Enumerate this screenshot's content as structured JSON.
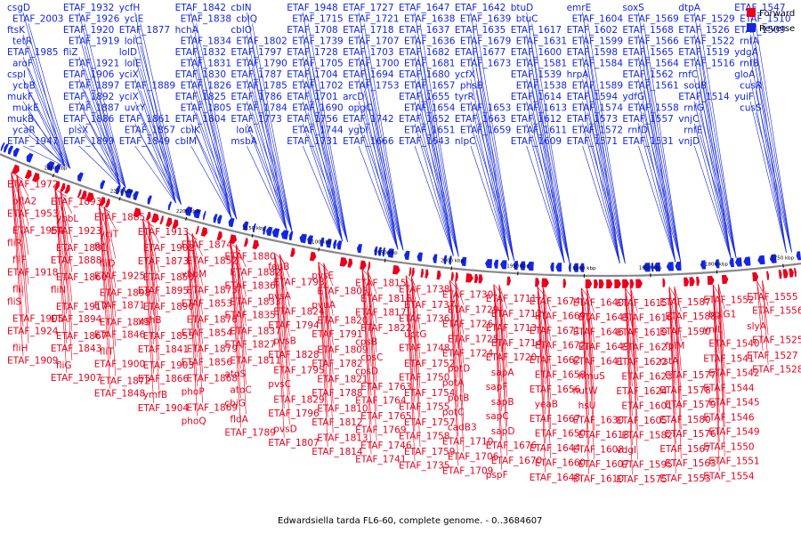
{
  "caption": "Edwardsiella tarda FL6-60, complete genome. - 0..3684607",
  "legend": {
    "forward": {
      "label": "Forward",
      "color": "#e8001c"
    },
    "reverse": {
      "label": "Reverse",
      "color": "#1426e0"
    }
  },
  "colors": {
    "forward": "#e8001c",
    "reverse": "#1426e0",
    "backbone": "#555555",
    "tick": "#000000"
  },
  "scale": {
    "ticks": [
      {
        "kbp": 2300,
        "label": "2300 kbp"
      },
      {
        "kbp": 2250,
        "label": "2250 kbp"
      },
      {
        "kbp": 2200,
        "label": "2200 kbp"
      },
      {
        "kbp": 2150,
        "label": "2150 kbp"
      },
      {
        "kbp": 2100,
        "label": "2100 kbp"
      },
      {
        "kbp": 2050,
        "label": "2050 kbp"
      },
      {
        "kbp": 2000,
        "label": "2000 kbp"
      },
      {
        "kbp": 1950,
        "label": "1950 kbp"
      },
      {
        "kbp": 1900,
        "label": "1900 kbp"
      },
      {
        "kbp": 1850,
        "label": "1850 kbp"
      },
      {
        "kbp": 1800,
        "label": "1800 kbp"
      },
      {
        "kbp": 1750,
        "label": "1750 kbp"
      }
    ]
  },
  "reverse_labels": [
    "csgD",
    "ETAF_2003",
    "ftsK",
    "tetR",
    "ETAF_1985",
    "aroF",
    "cspI",
    "ycbB",
    "mukF",
    "mukE",
    "mukB",
    "ycaR",
    "ETAF_1947",
    "ETAF_1932",
    "ETAF_1926",
    "ETAF_1920",
    "ETAF_1919",
    "fliZ",
    "ETAF_1921",
    "ETAF_1906",
    "ETAF_1897",
    "ETAF_1892",
    "ETAF_1887",
    "ETAF_1886",
    "plsX",
    "ETAF_1899",
    "ycfH",
    "yciE",
    "ETAF_1877",
    "lolC",
    "lolD",
    "lolE",
    "yciX",
    "ETAF_1889",
    "yciX",
    "uvrY",
    "ETAF_1861",
    "ETAF_1857",
    "ETAF_1849",
    "ETAF_1842",
    "ETAF_1838",
    "hchA",
    "ETAF_1834",
    "ETAF_1832",
    "ETAF_1831",
    "ETAF_1830",
    "ETAF_1826",
    "ETAF_1825",
    "ETAF_1805",
    "ETAF_1804",
    "cblK",
    "cblM",
    "cblN",
    "cblQ",
    "cblO",
    "ETAF_1802",
    "ETAF_1797",
    "ETAF_1790",
    "ETAF_1787",
    "ETAF_1785",
    "ETAF_1786",
    "ETAF_1784",
    "ETAF_1773",
    "lolA",
    "msbA",
    "ETAF_1948",
    "ETAF_1715",
    "ETAF_1708",
    "ETAF_1739",
    "ETAF_1728",
    "ETAF_1705",
    "ETAF_1704",
    "ETAF_1702",
    "ETAF_1701",
    "ETAF_1690",
    "ETAF_1756",
    "ETAF_1744",
    "ETAF_1731",
    "ETAF_1727",
    "ETAF_1721",
    "ETAF_1718",
    "ETAF_1707",
    "ETAF_1703",
    "ETAF_1700",
    "ETAF_1694",
    "ETAF_1753",
    "arcD",
    "opgC",
    "ETAF_1742",
    "ygbI",
    "ETAF_1666",
    "ETAF_1647",
    "ETAF_1638",
    "ETAF_1637",
    "ETAF_1636",
    "ETAF_1682",
    "ETAF_1681",
    "ETAF_1680",
    "ETAF_1657",
    "ETAF_1655",
    "ETAF_1654",
    "ETAF_1652",
    "ETAF_1651",
    "ETAF_1643",
    "ETAF_1642",
    "ETAF_1639",
    "ETAF_1635",
    "ETAF_1679",
    "ETAF_1677",
    "ETAF_1673",
    "ycfX",
    "phsB",
    "tyrR",
    "ETAF_1653",
    "ETAF_1663",
    "ETAF_1659",
    "nlpC",
    "btuD",
    "btuC",
    "ETAF_1617",
    "ETAF_1631",
    "ETAF_1600",
    "ETAF_1581",
    "ETAF_1539",
    "ETAF_1538",
    "ETAF_1614",
    "ETAF_1613",
    "ETAF_1612",
    "ETAF_1611",
    "ETAF_1609",
    "emrE",
    "ETAF_1604",
    "ETAF_1602",
    "ETAF_1599",
    "ETAF_1598",
    "ETAF_1584",
    "hrpA",
    "ETAF_1589",
    "ETAF_1594",
    "ETAF_1574",
    "ETAF_1573",
    "ETAF_1572",
    "ETAF_1571",
    "soxS",
    "ETAF_1569",
    "ETAF_1568",
    "ETAF_1566",
    "ETAF_1565",
    "ETAF_1564",
    "ETAF_1562",
    "ETAF_1561",
    "ydfG",
    "ETAF_1558",
    "ETAF_1557",
    "rnfD",
    "ETAF_1531",
    "dtpA",
    "ETAF_1529",
    "ETAF_1526",
    "ETAF_1522",
    "ETAF_1519",
    "ETAF_1516",
    "rnfC",
    "sodB",
    "ETAF_1514",
    "rnfG",
    "vnjC",
    "rnfE",
    "vnjD",
    "ETAF_1547",
    "ETAF_1510",
    "ETAF_1509",
    "rnfA",
    "ydgA",
    "rnfB",
    "gloA",
    "cusR",
    "yuiF",
    "cusS"
  ],
  "forward_labels": [
    "ETAF_1972",
    "pflA2",
    "ETAF_1953",
    "ETAF_1954",
    "fliR",
    "fliF",
    "ETAF_1918",
    "fliI",
    "fliS",
    "ETAF_1905",
    "ETAF_1924",
    "fliH",
    "ETAF_1909",
    "ETAF_1893",
    "ybbL",
    "ETAF_1923",
    "ETAF_1881",
    "ETAF_1888",
    "ETAF_1860",
    "fliN",
    "ETAF_1917",
    "ETAF_1894",
    "ETAF_1867",
    "ETAF_1843",
    "fliG",
    "ETAF_1907",
    "ETAF_1885",
    "yciT",
    "fliJ",
    "fliD",
    "ETAF_1925",
    "ETAF_1898",
    "ETAF_1871",
    "ETAF_1845",
    "ETAF_1846",
    "fliT",
    "ETAF_1900",
    "ETAF_1872",
    "ETAF_1848",
    "ETAF_1913",
    "ETAF_1902",
    "ETAF_1873",
    "ETAF_1850",
    "ETAF_1895",
    "ETAF_1890",
    "yghB",
    "ETAF_1855",
    "ETAF_1841",
    "ETAF_1903",
    "ETAF_1866",
    "ymfB",
    "ETAF_1904",
    "ETAF_1874",
    "ETAF_1852",
    "ybbM",
    "ETAF_1875",
    "ETAF_1853",
    "ETAF_1876",
    "ETAF_1854",
    "ETAF_1879",
    "ETAF_1856",
    "ETAF_1868",
    "phoP",
    "ETAF_1869",
    "phoQ",
    "ETAF_1880",
    "ETAF_1882",
    "ETAF_1836",
    "ETAF_1833",
    "ETAF_1835",
    "ETAF_1837",
    "ETAF_1827",
    "ETAF_1811",
    "atoS",
    "atoC",
    "cbiG",
    "fldA",
    "ETAF_1789",
    "feuB",
    "ETAF_1793",
    "pvsA",
    "ETAF_1824",
    "ETAF_1794",
    "pvsB",
    "ETAF_1828",
    "ETAF_1795",
    "pvsC",
    "ETAF_1829",
    "ETAF_1796",
    "pvsD",
    "ETAF_1807",
    "pvsE",
    "ETAF_1808",
    "pvuA",
    "ETAF_1820",
    "ETAF_1791",
    "ETAF_1809",
    "ETAF_1782",
    "ETAF_1821",
    "ETAF_1788",
    "ETAF_1810",
    "ETAF_1812",
    "ETAF_1813",
    "ETAF_1814",
    "ETAF_1815",
    "ETAF_1816",
    "ETAF_1817",
    "ETAF_1822",
    "cpsB",
    "cpsC",
    "cpsD",
    "ETAF_1763",
    "ETAF_1764",
    "ETAF_1765",
    "ETAF_1769",
    "ETAF_1746",
    "ETAF_1741",
    "ETAF_1738",
    "ETAF_1737",
    "ETAF_1736",
    "uptG",
    "ETAF_1748",
    "ETAF_1752",
    "ETAF_1750",
    "ETAF_1754",
    "ETAF_1755",
    "ETAF_1757",
    "ETAF_1758",
    "ETAF_1759",
    "ETAF_1735",
    "ETAF_1730",
    "ETAF_1729",
    "ETAF_1726",
    "ETAF_1725",
    "ETAF_1724",
    "potD",
    "potA",
    "potB",
    "potC",
    "cadB3",
    "ETAF_1710",
    "ETAF_1706",
    "ETAF_1709",
    "ETAF_1711",
    "ETAF_1712",
    "ETAF_1713",
    "ETAF_1714",
    "ETAF_1720",
    "sapA",
    "sapF",
    "sapB",
    "sapC",
    "sapD",
    "ETAF_1676",
    "ETAF_1670",
    "pspF",
    "ETAF_1674",
    "ETAF_1669",
    "ETAF_1671",
    "ETAF_1672",
    "ETAF_1662",
    "ETAF_1658",
    "ETAF_1656",
    "yeaB",
    "ETAF_1667",
    "ETAF_1650",
    "ETAF_1644",
    "ETAF_1660",
    "ETAF_1648",
    "ETAF_1640",
    "ETAF_1645",
    "ETAF_1646",
    "ETAF_1649",
    "ETAF_1641",
    "hmuS",
    "hutW",
    "hsU",
    "ETAF_1630",
    "ETAF_1618",
    "ETAF_1608",
    "ETAF_1607",
    "ETAF_1610",
    "ETAF_1615",
    "ETAF_1616",
    "ETAF_1619",
    "ETAF_1621",
    "ETAF_1622",
    "ETAF_1623",
    "ETAF_1624",
    "ETAF_1601",
    "ETAF_1605",
    "ETAF_1582",
    "vdgI",
    "ETAF_1595",
    "ETAF_1575",
    "ETAF_1587",
    "ETAF_1588",
    "ETAF_1590",
    "folM",
    "rstA",
    "ETAF_1577",
    "ETAF_1578",
    "ETAF_1579",
    "ETAF_1580",
    "ETAF_1576",
    "ETAF_1567",
    "ETAF_1563",
    "ETAF_1553",
    "ETAF_1552",
    "bglG1",
    "yniL",
    "ETAF_1540",
    "ETAF_1541",
    "ETAF_1542",
    "ETAF_1544",
    "ETAF_1545",
    "ETAF_1546",
    "ETAF_1549",
    "ETAF_1550",
    "ETAF_1551",
    "ETAF_1554",
    "ETAF_1555",
    "ETAF_1556",
    "slyA",
    "ETAF_1525",
    "ETAF_1527",
    "ETAF_1528"
  ]
}
